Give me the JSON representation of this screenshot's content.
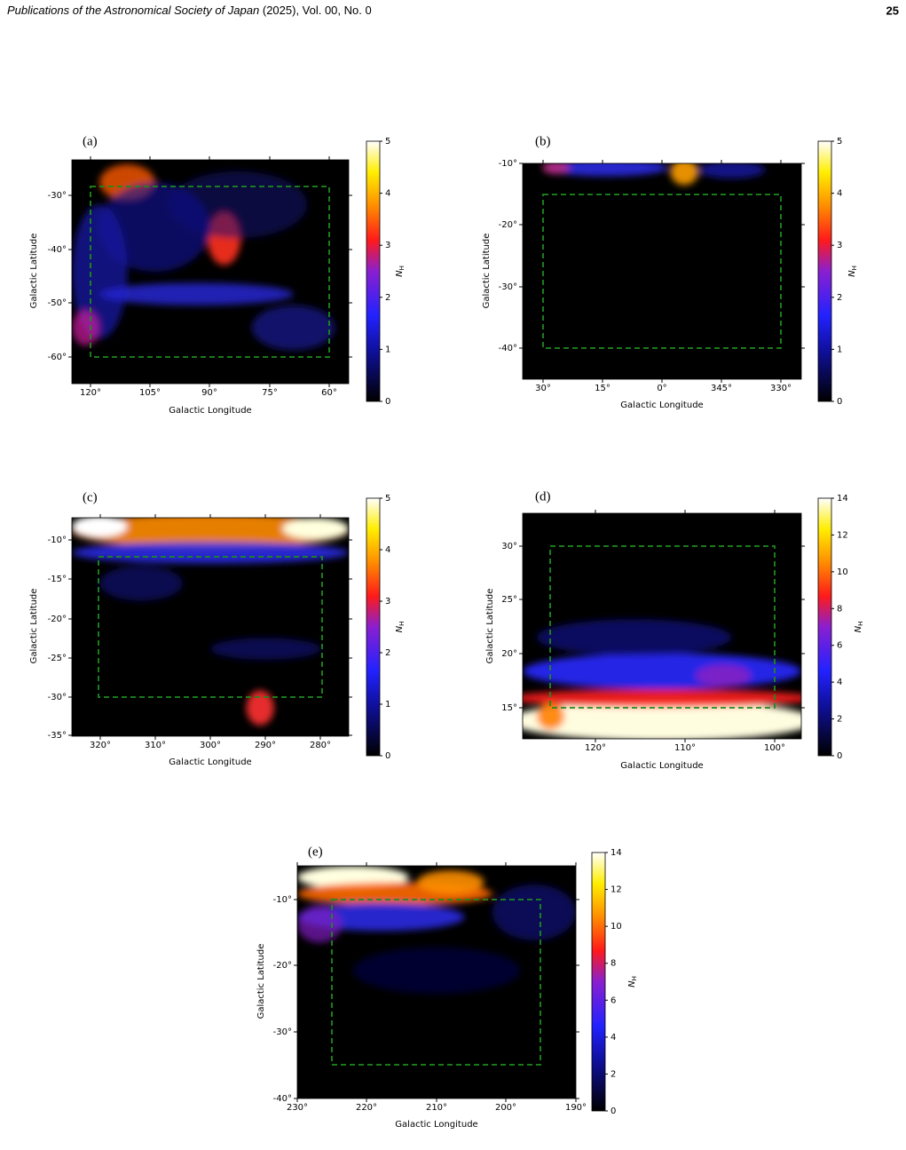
{
  "header": {
    "journal": "Publications of the Astronomical Society of Japan",
    "issue": "(2025), Vol. 00, No. 0",
    "page": "25"
  },
  "panels": [
    {
      "label": "(a)",
      "xlabel": "Galactic Longitude",
      "ylabel": "Galactic Latitude",
      "xticks": [
        "120°",
        "105°",
        "90°",
        "75°",
        "60°"
      ],
      "yticks": [
        "-30°",
        "-40°",
        "-50°",
        "-60°"
      ],
      "cbar_label": {
        "symbol": "N",
        "subscript": "H"
      },
      "cbar_ticks": [
        "0",
        "1",
        "2",
        "3",
        "4",
        "5"
      ]
    },
    {
      "label": "(b)",
      "xlabel": "Galactic Longitude",
      "ylabel": "Galactic Latitude",
      "xticks": [
        "30°",
        "15°",
        "0°",
        "345°",
        "330°"
      ],
      "yticks": [
        "-10°",
        "-20°",
        "-30°",
        "-40°"
      ],
      "cbar_label": {
        "symbol": "N",
        "subscript": "H"
      },
      "cbar_ticks": [
        "0",
        "1",
        "2",
        "3",
        "4",
        "5"
      ]
    },
    {
      "label": "(c)",
      "xlabel": "Galactic Longitude",
      "ylabel": "Galactic Latitude",
      "xticks": [
        "320°",
        "310°",
        "300°",
        "290°",
        "280°"
      ],
      "yticks": [
        "-10°",
        "-15°",
        "-20°",
        "-25°",
        "-30°",
        "-35°"
      ],
      "cbar_label": {
        "symbol": "N",
        "subscript": "H"
      },
      "cbar_ticks": [
        "0",
        "1",
        "2",
        "3",
        "4",
        "5"
      ]
    },
    {
      "label": "(d)",
      "xlabel": "Galactic Longitude",
      "ylabel": "Galactic Latitude",
      "xticks": [
        "120°",
        "110°",
        "100°"
      ],
      "yticks": [
        "30°",
        "25°",
        "20°",
        "15°"
      ],
      "cbar_label": {
        "symbol": "N",
        "subscript": "H"
      },
      "cbar_ticks": [
        "0",
        "2",
        "4",
        "6",
        "8",
        "10",
        "12",
        "14"
      ]
    },
    {
      "label": "(e)",
      "xlabel": "Galactic Longitude",
      "ylabel": "Galactic Latitude",
      "xticks": [
        "230°",
        "220°",
        "210°",
        "200°",
        "190°"
      ],
      "yticks": [
        "-10°",
        "-20°",
        "-30°",
        "-40°"
      ],
      "cbar_label": {
        "symbol": "N",
        "subscript": "H"
      },
      "cbar_ticks": [
        "0",
        "2",
        "4",
        "6",
        "8",
        "10",
        "12",
        "14"
      ]
    }
  ]
}
